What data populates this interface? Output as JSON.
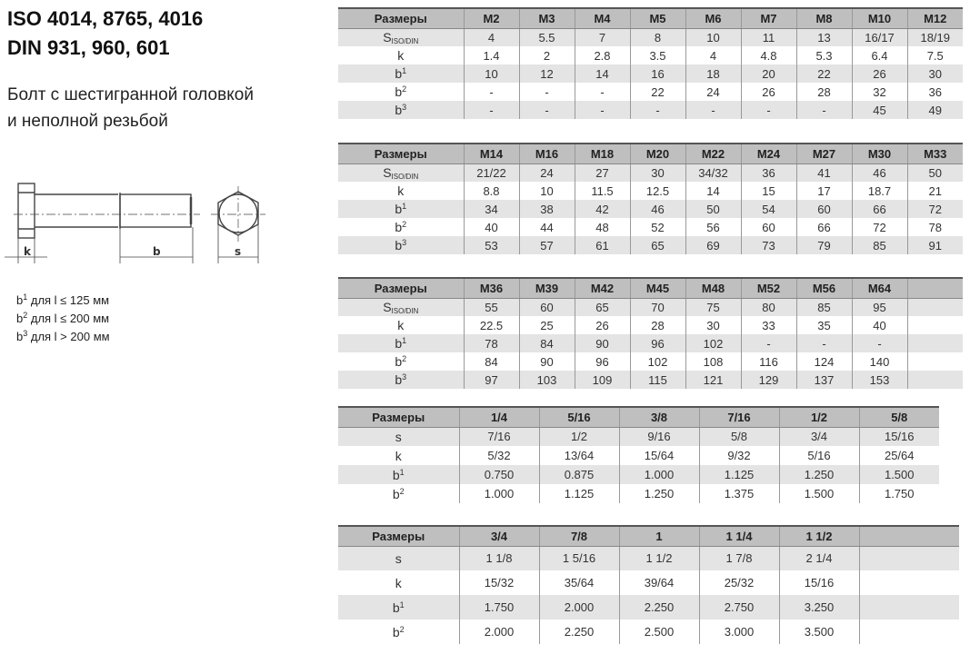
{
  "header": {
    "title_line1": "ISO 4014, 8765, 4016",
    "title_line2": "DIN 931, 960, 601",
    "subtitle_line1": "Болт с шестигранной головкой",
    "subtitle_line2": "и неполной резьбой"
  },
  "drawing": {
    "label_k": "k",
    "label_b": "b",
    "label_s": "s"
  },
  "notes": [
    {
      "sym": "b",
      "sup": "1",
      "text": " для l ≤ 125 мм"
    },
    {
      "sym": "b",
      "sup": "2",
      "text": " для l ≤ 200 мм"
    },
    {
      "sym": "b",
      "sup": "3",
      "text": " для l > 200 мм"
    }
  ],
  "tables": [
    {
      "header": [
        "Размеры",
        "M2",
        "M3",
        "M4",
        "M5",
        "M6",
        "M7",
        "M8",
        "M10",
        "M12"
      ],
      "rows": [
        {
          "label": "S",
          "sub": "ISO/DIN",
          "values": [
            "4",
            "5.5",
            "7",
            "8",
            "10",
            "11",
            "13",
            "16/17",
            "18/19"
          ]
        },
        {
          "label": "k",
          "values": [
            "1.4",
            "2",
            "2.8",
            "3.5",
            "4",
            "4.8",
            "5.3",
            "6.4",
            "7.5"
          ]
        },
        {
          "label": "b",
          "sup": "1",
          "values": [
            "10",
            "12",
            "14",
            "16",
            "18",
            "20",
            "22",
            "26",
            "30"
          ]
        },
        {
          "label": "b",
          "sup": "2",
          "values": [
            "-",
            "-",
            "-",
            "22",
            "24",
            "26",
            "28",
            "32",
            "36"
          ]
        },
        {
          "label": "b",
          "sup": "3",
          "values": [
            "-",
            "-",
            "-",
            "-",
            "-",
            "-",
            "-",
            "45",
            "49"
          ]
        }
      ]
    },
    {
      "header": [
        "Размеры",
        "M14",
        "M16",
        "M18",
        "M20",
        "M22",
        "M24",
        "M27",
        "M30",
        "M33"
      ],
      "rows": [
        {
          "label": "S",
          "sub": "ISO/DIN",
          "values": [
            "21/22",
            "24",
            "27",
            "30",
            "34/32",
            "36",
            "41",
            "46",
            "50"
          ]
        },
        {
          "label": "k",
          "values": [
            "8.8",
            "10",
            "11.5",
            "12.5",
            "14",
            "15",
            "17",
            "18.7",
            "21"
          ]
        },
        {
          "label": "b",
          "sup": "1",
          "values": [
            "34",
            "38",
            "42",
            "46",
            "50",
            "54",
            "60",
            "66",
            "72"
          ]
        },
        {
          "label": "b",
          "sup": "2",
          "values": [
            "40",
            "44",
            "48",
            "52",
            "56",
            "60",
            "66",
            "72",
            "78"
          ]
        },
        {
          "label": "b",
          "sup": "3",
          "values": [
            "53",
            "57",
            "61",
            "65",
            "69",
            "73",
            "79",
            "85",
            "91"
          ]
        }
      ]
    },
    {
      "header": [
        "Размеры",
        "M36",
        "M39",
        "M42",
        "M45",
        "M48",
        "M52",
        "M56",
        "M64",
        ""
      ],
      "rows": [
        {
          "label": "S",
          "sub": "ISO/DIN",
          "values": [
            "55",
            "60",
            "65",
            "70",
            "75",
            "80",
            "85",
            "95",
            ""
          ]
        },
        {
          "label": "k",
          "values": [
            "22.5",
            "25",
            "26",
            "28",
            "30",
            "33",
            "35",
            "40",
            ""
          ]
        },
        {
          "label": "b",
          "sup": "1",
          "values": [
            "78",
            "84",
            "90",
            "96",
            "102",
            "-",
            "-",
            "-",
            ""
          ]
        },
        {
          "label": "b",
          "sup": "2",
          "values": [
            "84",
            "90",
            "96",
            "102",
            "108",
            "116",
            "124",
            "140",
            ""
          ]
        },
        {
          "label": "b",
          "sup": "3",
          "values": [
            "97",
            "103",
            "109",
            "115",
            "121",
            "129",
            "137",
            "153",
            ""
          ]
        }
      ]
    },
    {
      "header": [
        "Размеры",
        "1/4",
        "5/16",
        "3/8",
        "7/16",
        "1/2",
        "5/8"
      ],
      "rows": [
        {
          "label": "s",
          "values": [
            "7/16",
            "1/2",
            "9/16",
            "5/8",
            "3/4",
            "15/16"
          ]
        },
        {
          "label": "k",
          "values": [
            "5/32",
            "13/64",
            "15/64",
            "9/32",
            "5/16",
            "25/64"
          ]
        },
        {
          "label": "b",
          "sup": "1",
          "values": [
            "0.750",
            "0.875",
            "1.000",
            "1.125",
            "1.250",
            "1.500"
          ]
        },
        {
          "label": "b",
          "sup": "2",
          "values": [
            "1.000",
            "1.125",
            "1.250",
            "1.375",
            "1.500",
            "1.750"
          ]
        }
      ]
    },
    {
      "header": [
        "Размеры",
        "3/4",
        "7/8",
        "1",
        "1 1/4",
        "1 1/2",
        ""
      ],
      "rows": [
        {
          "label": "s",
          "values": [
            "1 1/8",
            "1 5/16",
            "1 1/2",
            "1 7/8",
            "2 1/4",
            ""
          ]
        },
        {
          "label": "k",
          "values": [
            "15/32",
            "35/64",
            "39/64",
            "25/32",
            "15/16",
            ""
          ]
        },
        {
          "label": "b",
          "sup": "1",
          "values": [
            "1.750",
            "2.000",
            "2.250",
            "2.750",
            "3.250",
            ""
          ]
        },
        {
          "label": "b",
          "sup": "2",
          "values": [
            "2.000",
            "2.250",
            "2.500",
            "3.000",
            "3.500",
            ""
          ]
        }
      ]
    }
  ]
}
